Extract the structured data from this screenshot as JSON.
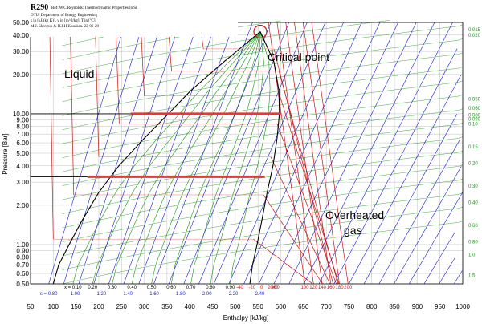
{
  "colors": {
    "grid": "#000000",
    "isotherm": "#c81414",
    "isochor": "#169616",
    "isentrope": "#1a1acf",
    "dome": "#000000",
    "highlight": "#e23a3a",
    "critical_circle": "#c81414"
  },
  "header": {
    "title": "R290",
    "ref": "Ref: W.C.Reynolds: Thermodynamic Properties in SI",
    "line2": "DTU, Department of Energy Engineering",
    "line3": "s in [kJ/(kg K)]. v in [m^3/kg]. T in [ºC]",
    "line4": "M.J. Skovrup & H.J.H Knudsen. 22-06-29"
  },
  "annotations": {
    "liquid": "Liquid",
    "critical": "Critical point",
    "gas_line1": "Overheated",
    "gas_line2": "gas"
  },
  "chart_data": {
    "type": "line",
    "title": "R290",
    "xlabel": "Enthalpy [kJ/kg]",
    "ylabel": "Pressure [Bar]",
    "xlim": [
      50,
      1000
    ],
    "ylim": [
      0.5,
      50
    ],
    "yscale": "log",
    "grid": true,
    "x_ticks": [
      "50",
      "100",
      "150",
      "200",
      "250",
      "300",
      "350",
      "400",
      "450",
      "500",
      "550",
      "600",
      "650",
      "700",
      "750",
      "800",
      "850",
      "900",
      "950",
      "1000"
    ],
    "y_ticks": [
      {
        "v": 50,
        "label": "50.00"
      },
      {
        "v": 40,
        "label": "40.00"
      },
      {
        "v": 30,
        "label": "30.00"
      },
      {
        "v": 20,
        "label": "20.00"
      },
      {
        "v": 10,
        "label": "10.00"
      },
      {
        "v": 9,
        "label": "9.00"
      },
      {
        "v": 8,
        "label": "8.00"
      },
      {
        "v": 7,
        "label": "7.00"
      },
      {
        "v": 6,
        "label": "6.00"
      },
      {
        "v": 5,
        "label": "5.00"
      },
      {
        "v": 4,
        "label": "4.00"
      },
      {
        "v": 3,
        "label": "3.00"
      },
      {
        "v": 2,
        "label": "2.00"
      },
      {
        "v": 1,
        "label": "1.00"
      },
      {
        "v": 0.9,
        "label": "0.90"
      },
      {
        "v": 0.8,
        "label": "0.80"
      },
      {
        "v": 0.7,
        "label": "0.70"
      },
      {
        "v": 0.6,
        "label": "0.60"
      },
      {
        "v": 0.5,
        "label": "0.50"
      }
    ],
    "right_ticks": [
      "0.015",
      "0.020",
      "0.050",
      "0.060",
      "0.080",
      "0.090",
      "0.10",
      "0.15",
      "0.20",
      "0.30",
      "0.40",
      "0.60",
      "0.80",
      "1.0",
      "1.5"
    ],
    "right_tick_pressures": [
      44,
      40,
      13,
      11,
      9.8,
      9.1,
      8.4,
      5.6,
      4.2,
      2.8,
      2.1,
      1.4,
      1.05,
      0.84,
      0.58
    ],
    "bottom_temps": [
      "-40",
      "-20",
      "0",
      "20",
      "40",
      "60",
      "80",
      "100",
      "120",
      "140",
      "160",
      "180",
      "200"
    ],
    "quality_labels": [
      "x = 0.10",
      "0.20",
      "0.30",
      "0.40",
      "0.50",
      "0.60",
      "0.70",
      "0.80",
      "0.90"
    ],
    "entropy_labels": [
      "s = 0.80",
      "1.00",
      "1.20",
      "1.40",
      "1.60",
      "1.80",
      "2.00",
      "2.20",
      "2.40"
    ],
    "saturated_liquid": {
      "h": [
        100,
        112,
        135,
        162,
        200,
        244,
        300,
        353,
        402,
        475,
        555
      ],
      "p": [
        0.5,
        0.7,
        1,
        1.5,
        2.5,
        4,
        6.5,
        10,
        15,
        25,
        42.5
      ]
    },
    "saturated_vapor": {
      "h": [
        532,
        538,
        548,
        558,
        570,
        583,
        592,
        597,
        596,
        585,
        555
      ],
      "p": [
        0.5,
        0.7,
        1,
        1.5,
        2.5,
        4,
        6.5,
        10,
        15,
        25,
        42.5
      ]
    },
    "critical_point": {
      "h": 555,
      "p": 42.5
    },
    "highlight_lines": [
      {
        "p": 10,
        "h_start": 270,
        "h_end": 600
      },
      {
        "p": 3.3,
        "h_start": 175,
        "h_end": 565
      }
    ],
    "isotherm_temps": [
      -40,
      -20,
      0,
      20,
      40,
      60,
      80,
      100,
      120,
      140,
      160,
      180,
      200
    ],
    "isotherm_sat_pressures": [
      1.1,
      2.4,
      4.7,
      8.4,
      13.7,
      21.2,
      31.4,
      null,
      null,
      null,
      null,
      null,
      null
    ],
    "isotherm_liquid_h": [
      100,
      145,
      200,
      245,
      300,
      360,
      430,
      null,
      null,
      null,
      null,
      null,
      null
    ],
    "isotherm_vapor_h": [
      540,
      562,
      578,
      592,
      598,
      596,
      585,
      null,
      null,
      null,
      null,
      null,
      null
    ]
  }
}
